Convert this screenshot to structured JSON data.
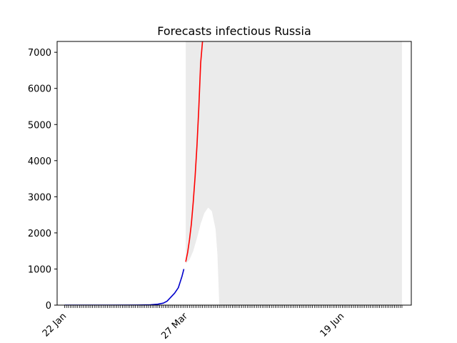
{
  "chart_data": {
    "type": "line",
    "title": "Forecasts infectious Russia",
    "xlabel": "",
    "ylabel": "",
    "x_start": "2020-01-22",
    "x_end": "2020-07-21",
    "xlim": [
      "2020-01-18",
      "2020-07-26"
    ],
    "ylim": [
      0,
      7300
    ],
    "yticks": [
      0,
      1000,
      2000,
      3000,
      4000,
      5000,
      6000,
      7000
    ],
    "xtick_labels": [
      {
        "date": "2020-01-22",
        "label": "22 Jan"
      },
      {
        "date": "2020-03-27",
        "label": "27 Mar"
      },
      {
        "date": "2020-06-19",
        "label": "19 Jun"
      }
    ],
    "grid": false,
    "series": [
      {
        "role": "observed",
        "color": "#0000cc",
        "points": [
          [
            "2020-01-22",
            0
          ],
          [
            "2020-02-01",
            0
          ],
          [
            "2020-02-15",
            0
          ],
          [
            "2020-03-01",
            2
          ],
          [
            "2020-03-08",
            10
          ],
          [
            "2020-03-12",
            25
          ],
          [
            "2020-03-15",
            55
          ],
          [
            "2020-03-17",
            110
          ],
          [
            "2020-03-19",
            220
          ],
          [
            "2020-03-21",
            330
          ],
          [
            "2020-03-23",
            480
          ],
          [
            "2020-03-25",
            800
          ],
          [
            "2020-03-26",
            1000
          ]
        ]
      },
      {
        "role": "forecast",
        "color": "#ff0000",
        "points": [
          [
            "2020-03-27",
            1200
          ],
          [
            "2020-03-28",
            1450
          ],
          [
            "2020-03-29",
            1800
          ],
          [
            "2020-03-30",
            2250
          ],
          [
            "2020-03-31",
            2850
          ],
          [
            "2020-04-01",
            3550
          ],
          [
            "2020-04-02",
            4400
          ],
          [
            "2020-04-03",
            5450
          ],
          [
            "2020-04-04",
            6700
          ],
          [
            "2020-04-05",
            7300
          ]
        ]
      }
    ],
    "interval": {
      "color": "#ebebeb",
      "points": [
        [
          "2020-03-27",
          1150,
          7300
        ],
        [
          "2020-03-29",
          1250,
          7300
        ],
        [
          "2020-03-31",
          1500,
          7300
        ],
        [
          "2020-04-02",
          1850,
          7300
        ],
        [
          "2020-04-04",
          2250,
          7300
        ],
        [
          "2020-04-06",
          2550,
          7300
        ],
        [
          "2020-04-08",
          2700,
          7300
        ],
        [
          "2020-04-10",
          2600,
          7300
        ],
        [
          "2020-04-12",
          2100,
          7300
        ],
        [
          "2020-04-13",
          1400,
          7300
        ],
        [
          "2020-04-14",
          0,
          7300
        ],
        [
          "2020-07-21",
          0,
          7300
        ]
      ]
    }
  }
}
